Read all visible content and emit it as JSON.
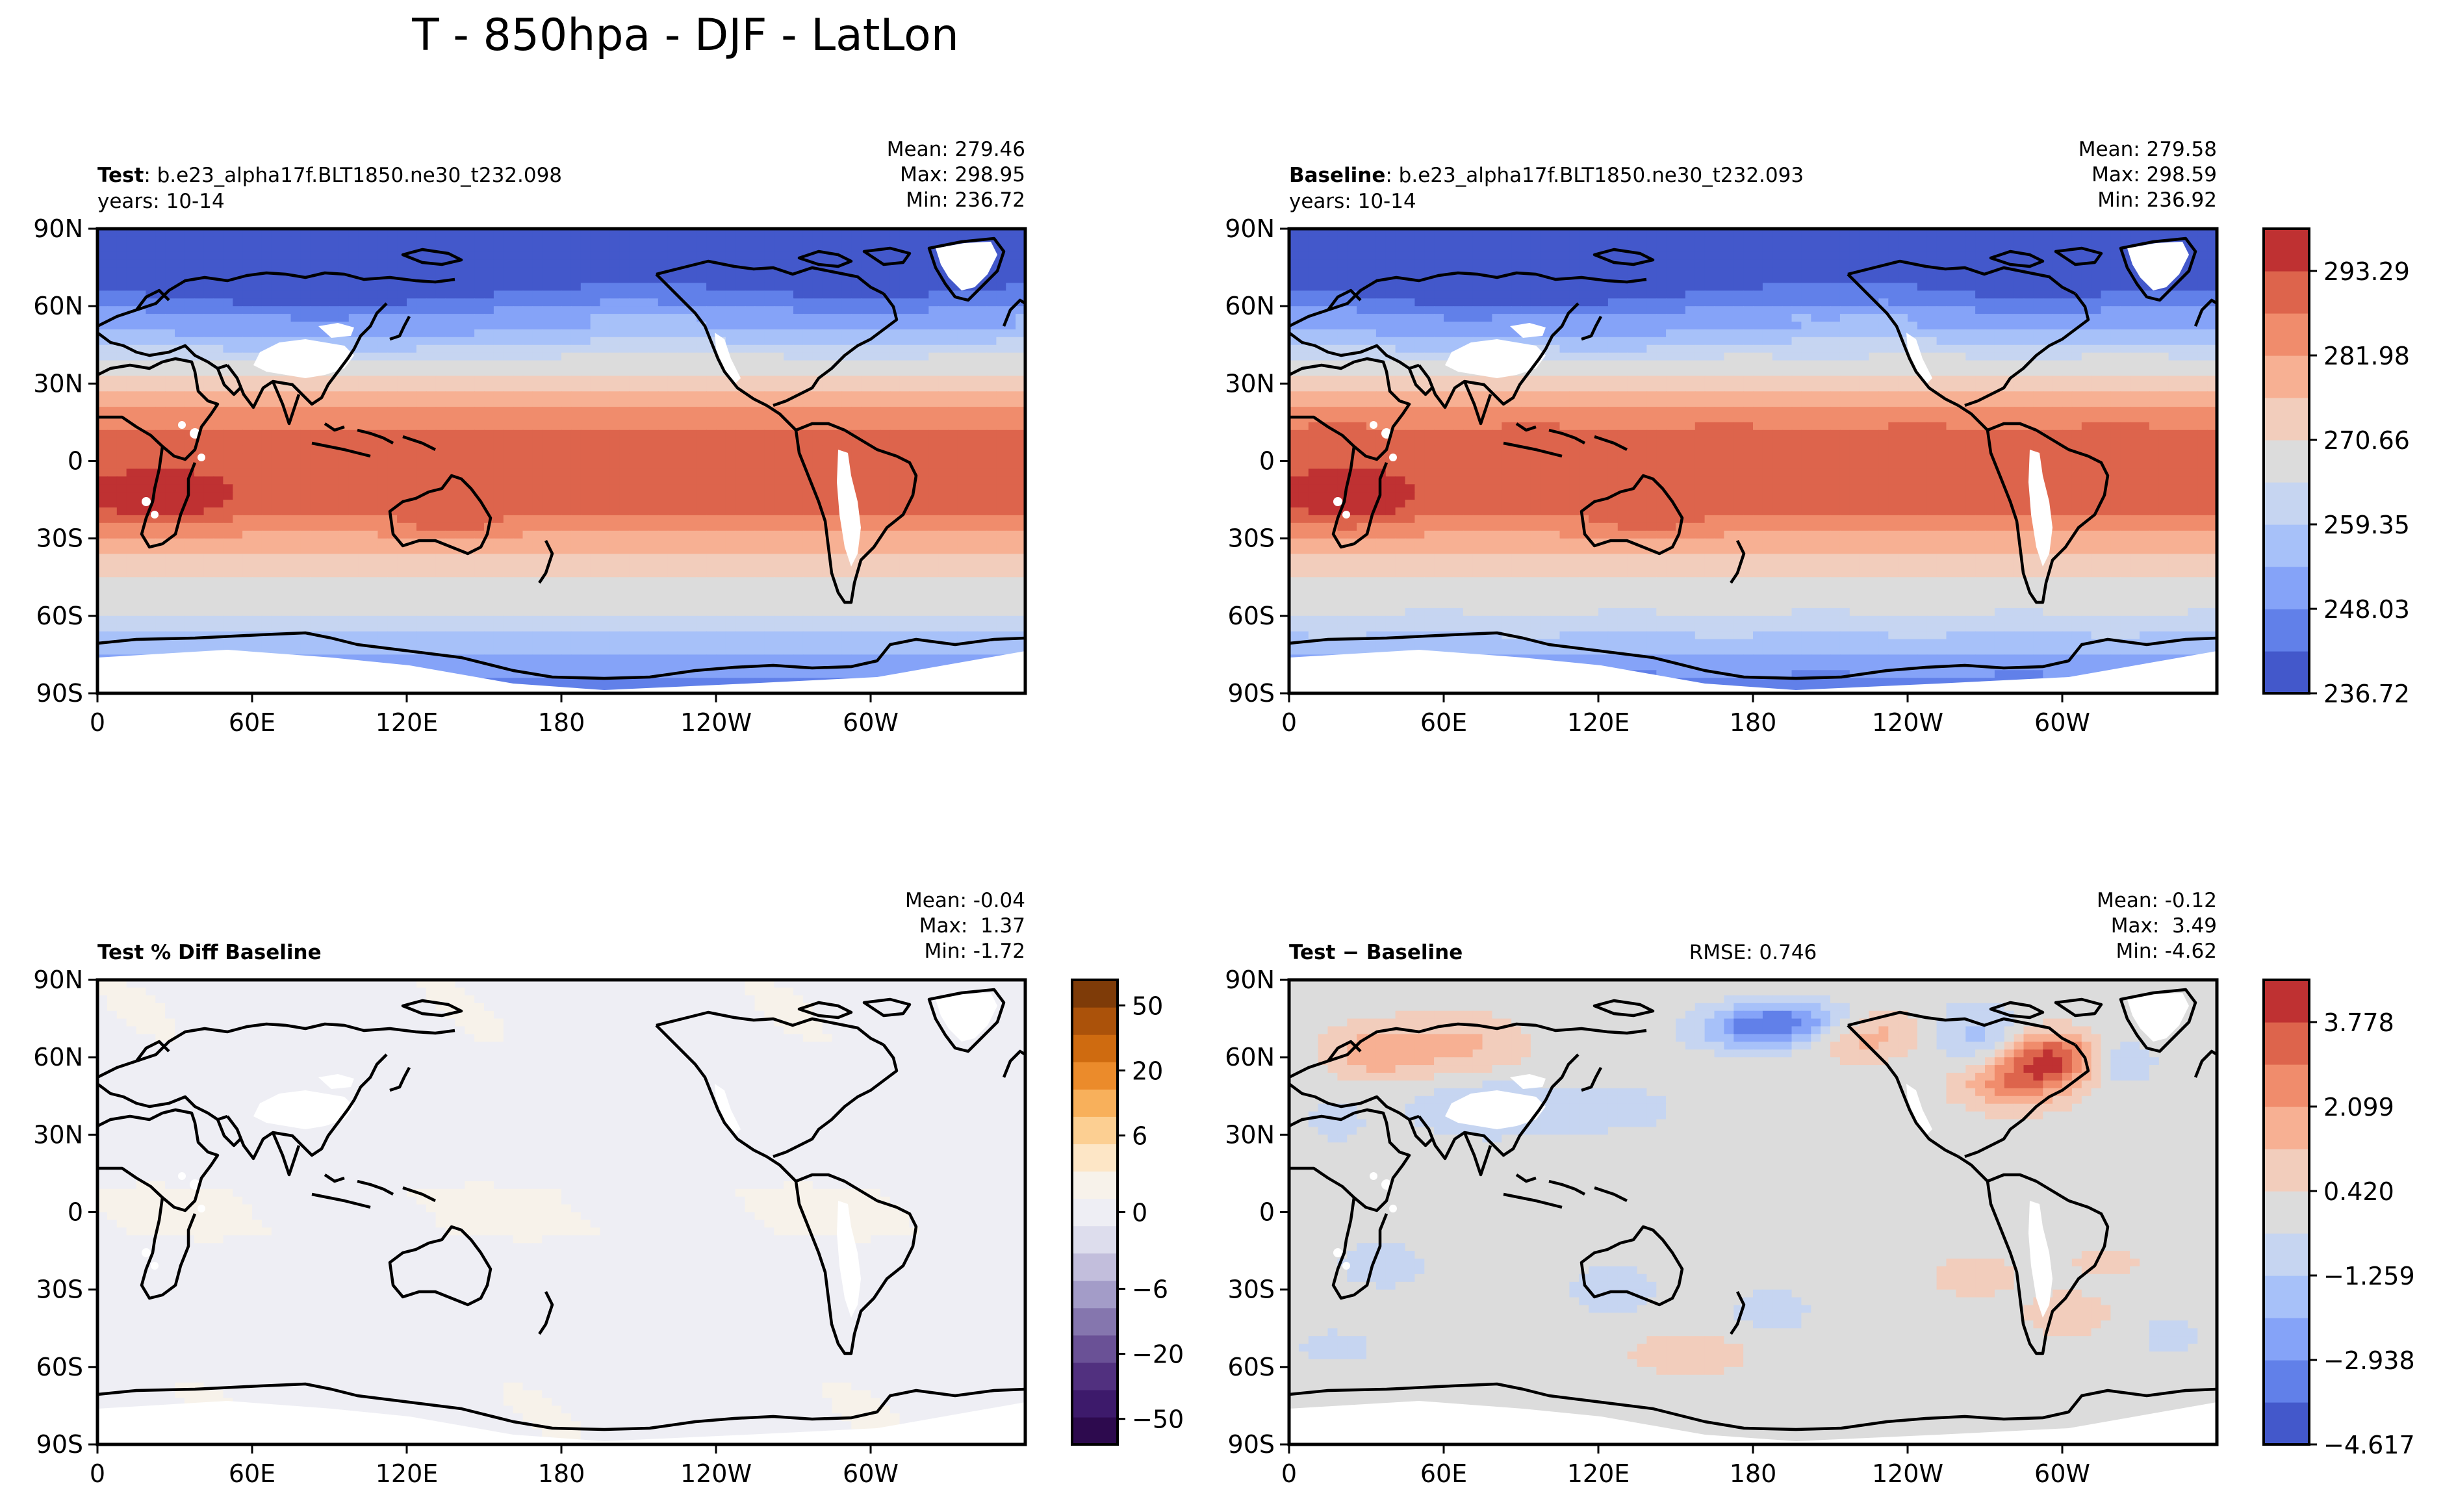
{
  "chart_data": {
    "type": "heatmap",
    "title": "T - 850hpa - DJF - LatLon",
    "x_ticks": [
      "0",
      "60E",
      "120E",
      "180",
      "120W",
      "60W"
    ],
    "y_ticks": [
      "90N",
      "60N",
      "30N",
      "0",
      "30S",
      "60S",
      "90S"
    ],
    "panels": [
      {
        "id": "test",
        "label_bold": "Test",
        "label_rest": ": b.e23_alpha17f.BLT1850.ne30_t232.098",
        "subtitle": "years: 10-14",
        "stats": [
          "Mean: 279.46",
          "Max: 298.95",
          "Min: 236.72"
        ],
        "rmse": "",
        "scheme": "temp"
      },
      {
        "id": "baseline",
        "label_bold": "Baseline",
        "label_rest": ": b.e23_alpha17f.BLT1850.ne30_t232.093",
        "subtitle": "years: 10-14",
        "stats": [
          "Mean: 279.58",
          "Max: 298.59",
          "Min: 236.92"
        ],
        "rmse": "",
        "scheme": "temp"
      },
      {
        "id": "pct-diff",
        "label_bold": "Test % Diff Baseline",
        "label_rest": "",
        "subtitle": "",
        "stats": [
          "Mean: -0.04",
          "Max:  1.37",
          "Min: -1.72"
        ],
        "rmse": "",
        "scheme": "pct"
      },
      {
        "id": "diff",
        "label_bold": "Test − Baseline",
        "label_rest": "",
        "subtitle": "",
        "stats": [
          "Mean: -0.12",
          "Max:  3.49",
          "Min: -4.62"
        ],
        "rmse": "RMSE: 0.746",
        "scheme": "diff"
      }
    ],
    "colorbars": [
      {
        "id": "temp",
        "colors": [
          "#4358cb",
          "#6180e9",
          "#85a3f8",
          "#a7c1f9",
          "#c6d5f1",
          "#dcdcdc",
          "#f2cdbc",
          "#f7b093",
          "#f08c6c",
          "#dd644c",
          "#bf3132"
        ],
        "tick_labels": [
          "236.72",
          "248.03",
          "259.35",
          "270.66",
          "281.98",
          "293.29"
        ],
        "tick_levels": [
          0,
          2,
          4,
          6,
          8,
          10
        ],
        "levels": 11
      },
      {
        "id": "pct",
        "colors": [
          "#2d0a4e",
          "#3d1a6b",
          "#51307f",
          "#6a5196",
          "#8576ae",
          "#a39cc8",
          "#c2bedc",
          "#dddded",
          "#eeeef4",
          "#f7f2ea",
          "#fde6c6",
          "#fccf92",
          "#f8b05b",
          "#eb8b2b",
          "#cf6b10",
          "#ab520a",
          "#7e3b08"
        ],
        "tick_labels": [
          "−50",
          "−20",
          "−6",
          "0",
          "6",
          "20",
          "50"
        ],
        "tick_fracs": [
          0.055,
          0.195,
          0.335,
          0.5,
          0.665,
          0.805,
          0.945
        ],
        "levels": 17
      },
      {
        "id": "diff",
        "colors": [
          "#4358cb",
          "#6180e9",
          "#85a3f8",
          "#a7c1f9",
          "#c6d5f1",
          "#dcdcdc",
          "#f2cdbc",
          "#f7b093",
          "#f08c6c",
          "#dd644c",
          "#bf3132"
        ],
        "tick_labels": [
          "−4.617",
          "−2.938",
          "−1.259",
          "0.420",
          "2.099",
          "3.778"
        ],
        "tick_levels": [
          0,
          2,
          4,
          6,
          8,
          10
        ],
        "levels": 11
      }
    ],
    "colorbar_tick_labels": {
      "temp": [
        "236.72",
        "248.03",
        "259.35",
        "270.66",
        "281.98",
        "293.29"
      ],
      "pct": [
        "−50",
        "−20",
        "−6",
        "0",
        "6",
        "20",
        "50"
      ],
      "diff": [
        "−4.617",
        "−2.938",
        "−1.259",
        "0.420",
        "2.099",
        "3.778"
      ]
    }
  }
}
